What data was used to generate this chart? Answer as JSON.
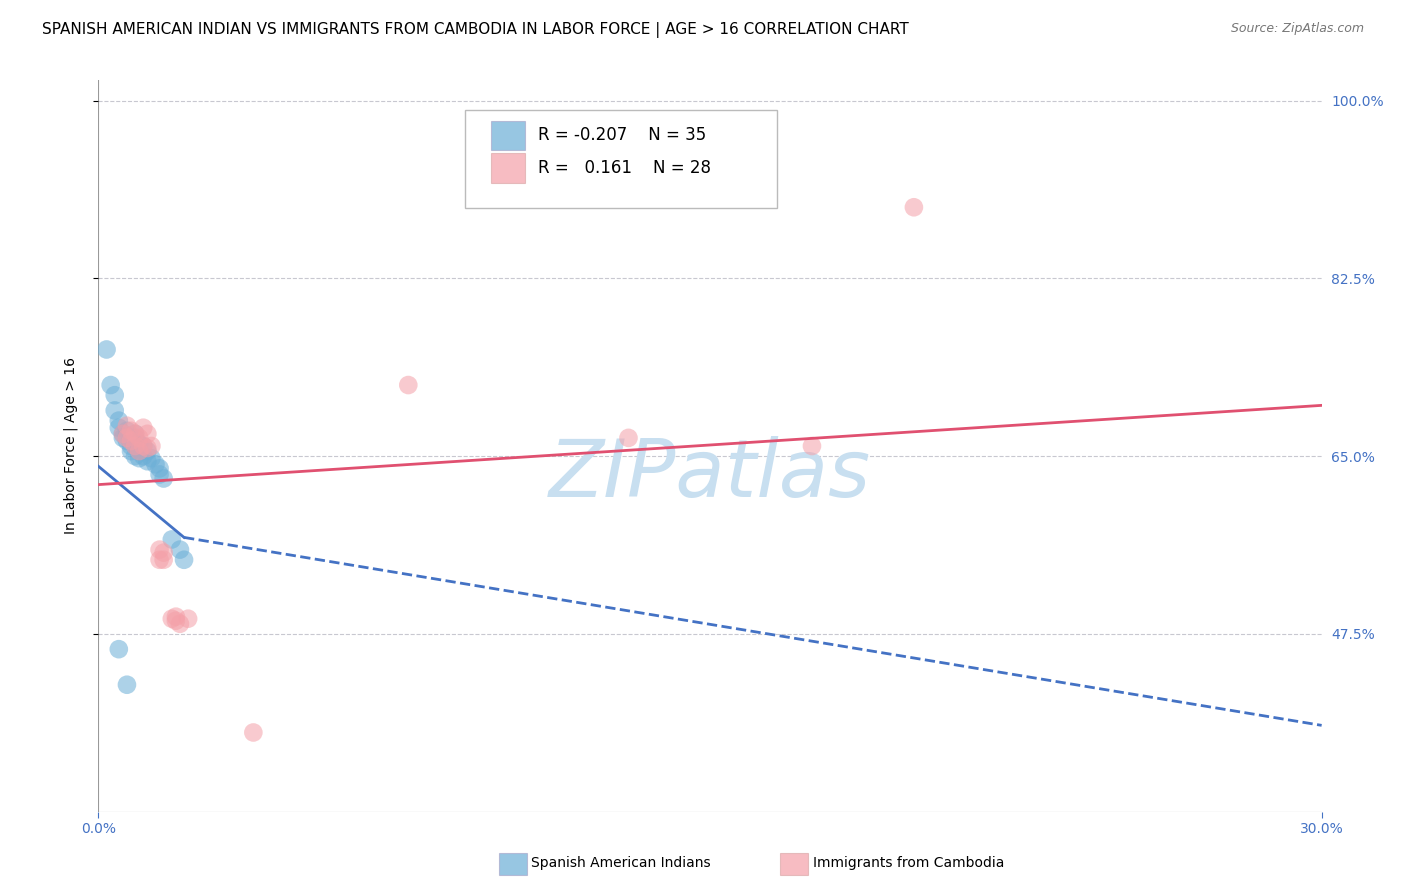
{
  "title": "SPANISH AMERICAN INDIAN VS IMMIGRANTS FROM CAMBODIA IN LABOR FORCE | AGE > 16 CORRELATION CHART",
  "source": "Source: ZipAtlas.com",
  "xmin": 0.0,
  "xmax": 0.3,
  "ymin": 0.3,
  "ymax": 1.02,
  "watermark": "ZIPatlas",
  "ylabel_label": "In Labor Force | Age > 16",
  "yticks": [
    0.475,
    0.65,
    0.825,
    1.0
  ],
  "ytick_labels": [
    "47.5%",
    "65.0%",
    "82.5%",
    "100.0%"
  ],
  "xtick_labels": [
    "0.0%",
    "30.0%"
  ],
  "blue_scatter_x": [
    0.002,
    0.003,
    0.004,
    0.004,
    0.005,
    0.005,
    0.006,
    0.006,
    0.007,
    0.007,
    0.007,
    0.008,
    0.008,
    0.008,
    0.009,
    0.009,
    0.009,
    0.009,
    0.01,
    0.01,
    0.01,
    0.011,
    0.011,
    0.012,
    0.012,
    0.013,
    0.014,
    0.015,
    0.015,
    0.016,
    0.018,
    0.02,
    0.021,
    0.005,
    0.007
  ],
  "blue_scatter_y": [
    0.755,
    0.72,
    0.71,
    0.695,
    0.685,
    0.678,
    0.672,
    0.668,
    0.675,
    0.67,
    0.665,
    0.668,
    0.66,
    0.655,
    0.672,
    0.668,
    0.66,
    0.65,
    0.662,
    0.655,
    0.648,
    0.66,
    0.65,
    0.655,
    0.645,
    0.648,
    0.642,
    0.638,
    0.632,
    0.628,
    0.568,
    0.558,
    0.548,
    0.46,
    0.425
  ],
  "pink_scatter_x": [
    0.006,
    0.007,
    0.007,
    0.008,
    0.008,
    0.009,
    0.009,
    0.01,
    0.01,
    0.011,
    0.011,
    0.012,
    0.012,
    0.013,
    0.015,
    0.015,
    0.016,
    0.016,
    0.018,
    0.019,
    0.019,
    0.02,
    0.022,
    0.038,
    0.076,
    0.13,
    0.175,
    0.2
  ],
  "pink_scatter_y": [
    0.672,
    0.68,
    0.668,
    0.675,
    0.665,
    0.672,
    0.66,
    0.668,
    0.655,
    0.678,
    0.66,
    0.672,
    0.658,
    0.66,
    0.558,
    0.548,
    0.555,
    0.548,
    0.49,
    0.492,
    0.488,
    0.485,
    0.49,
    0.378,
    0.72,
    0.668,
    0.66,
    0.895
  ],
  "blue_line_x0": 0.0,
  "blue_line_x1": 0.021,
  "blue_line_xdash1": 0.3,
  "blue_line_y0": 0.64,
  "blue_line_y1_solid": 0.57,
  "blue_line_y1_dash": 0.385,
  "pink_line_x0": 0.0,
  "pink_line_x1": 0.3,
  "pink_line_y0": 0.622,
  "pink_line_y1": 0.7,
  "blue_color": "#6baed6",
  "pink_color": "#f4a0a8",
  "blue_line_color": "#4472c4",
  "pink_line_color": "#e05070",
  "grid_color": "#c8c8d0",
  "watermark_color": "#c8dff0",
  "title_fontsize": 11,
  "axis_label_fontsize": 10,
  "tick_fontsize": 10,
  "legend_fontsize": 12
}
